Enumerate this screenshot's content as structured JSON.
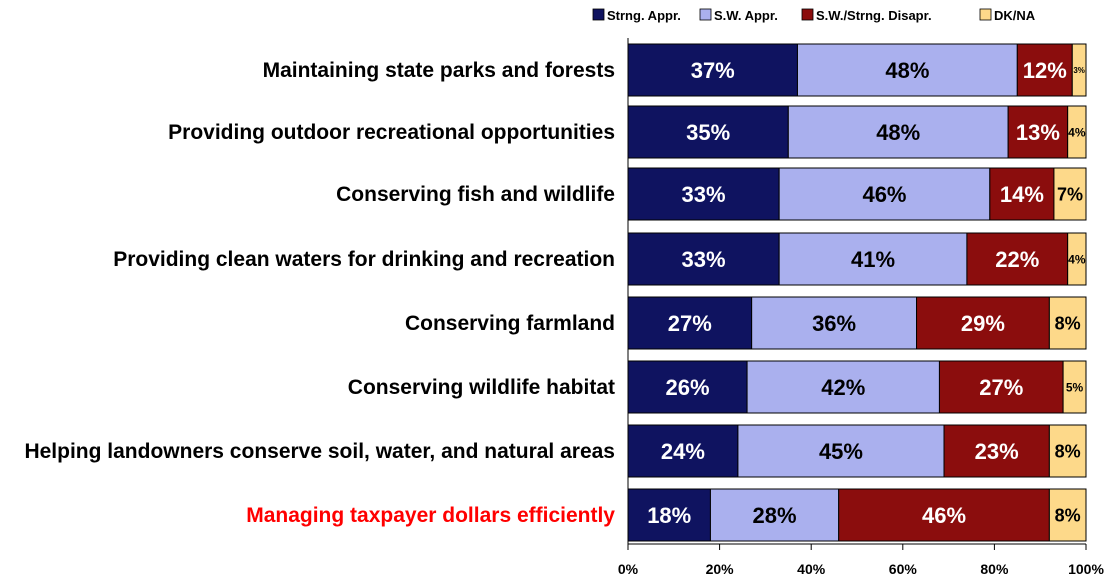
{
  "chart_data": {
    "type": "bar",
    "orientation": "horizontal",
    "stacked": true,
    "categories": [
      "Maintaining state parks and forests",
      "Providing outdoor recreational opportunities",
      "Conserving fish and wildlife",
      "Providing clean waters for drinking and recreation",
      "Conserving farmland",
      "Conserving wildlife habitat",
      "Helping landowners conserve soil, water, and natural areas",
      "Managing taxpayer dollars efficiently"
    ],
    "highlight_category": "Managing taxpayer dollars efficiently",
    "highlight_color": "#ff0000",
    "series": [
      {
        "name": "Strng. Appr.",
        "color": "#0f1360",
        "label_color": "#ffffff",
        "values": [
          37,
          35,
          33,
          33,
          27,
          26,
          24,
          18
        ]
      },
      {
        "name": "S.W. Appr.",
        "color": "#aab0ee",
        "label_color": "#000000",
        "values": [
          48,
          48,
          46,
          41,
          36,
          42,
          45,
          28
        ]
      },
      {
        "name": "S.W./Strng. Disapr.",
        "color": "#8b0d0d",
        "label_color": "#ffffff",
        "values": [
          12,
          13,
          14,
          22,
          29,
          27,
          23,
          46
        ]
      },
      {
        "name": "DK/NA",
        "color": "#fdd98a",
        "label_color": "#000000",
        "values": [
          3,
          4,
          7,
          4,
          8,
          5,
          8,
          8
        ]
      }
    ],
    "data_labels": [
      [
        "37%",
        "48%",
        "12%",
        "3%"
      ],
      [
        "35%",
        "48%",
        "13%",
        "4%"
      ],
      [
        "33%",
        "46%",
        "14%",
        "7%"
      ],
      [
        "33%",
        "41%",
        "22%",
        "4%"
      ],
      [
        "27%",
        "36%",
        "29%",
        "8%"
      ],
      [
        "26%",
        "42%",
        "27%",
        "5%"
      ],
      [
        "24%",
        "45%",
        "23%",
        "8%"
      ],
      [
        "18%",
        "28%",
        "46%",
        "8%"
      ]
    ],
    "x_ticks": [
      "0%",
      "20%",
      "40%",
      "60%",
      "80%",
      "100%"
    ],
    "xlim": [
      0,
      100
    ],
    "legend_position": "top-right",
    "grid": false
  }
}
